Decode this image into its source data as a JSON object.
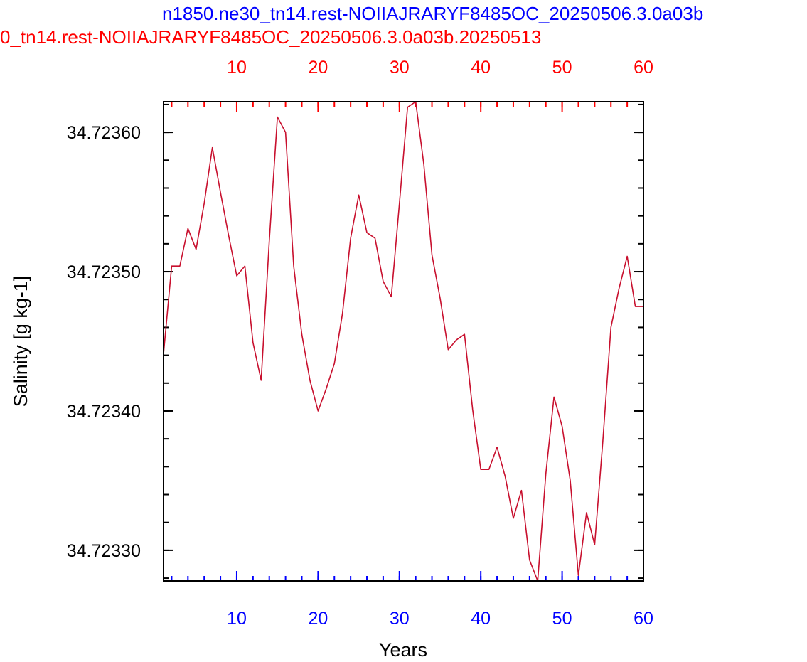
{
  "titles": {
    "blue": "n1850.ne30_tn14.rest-NOIIAJRARYF8485OC_20250506.3.0a03b",
    "red": "0_tn14.rest-NOIIAJRARYF8485OC_20250506.3.0a03b.20250513"
  },
  "colors": {
    "blue": "#0000ff",
    "red": "#ff0000",
    "line": "#c8102e",
    "axis": "#000000"
  },
  "chart_data": {
    "type": "line",
    "xlabel": "Years",
    "ylabel": "Salinity [g kg-1]",
    "xlim": [
      1,
      60
    ],
    "ylim": [
      34.723278,
      34.723622
    ],
    "xticks": [
      10,
      20,
      30,
      40,
      50,
      60
    ],
    "yticks": [
      34.7233,
      34.7234,
      34.7235,
      34.7236
    ],
    "ytick_labels": [
      "34.72330",
      "34.72340",
      "34.72350",
      "34.72360"
    ],
    "top_axis_ticks": [
      10,
      20,
      30,
      40,
      50,
      60
    ],
    "x": [
      1,
      2,
      3,
      4,
      5,
      6,
      7,
      8,
      9,
      10,
      11,
      12,
      13,
      14,
      15,
      16,
      17,
      18,
      19,
      20,
      21,
      22,
      23,
      24,
      25,
      26,
      27,
      28,
      29,
      30,
      31,
      32,
      33,
      34,
      35,
      36,
      37,
      38,
      39,
      40,
      41,
      42,
      43,
      44,
      45,
      46,
      47,
      48,
      49,
      50,
      51,
      52,
      53,
      54,
      55,
      56,
      57,
      58,
      59,
      60
    ],
    "series": [
      {
        "values": [
          34.723441,
          34.723504,
          34.723504,
          34.723531,
          34.723516,
          34.723549,
          34.723589,
          34.723557,
          34.723526,
          34.723497,
          34.723504,
          34.723449,
          34.723422,
          34.723522,
          34.723611,
          34.7236,
          34.723504,
          34.723455,
          34.723422,
          34.7234,
          34.723416,
          34.723434,
          34.72347,
          34.723524,
          34.723555,
          34.723528,
          34.723524,
          34.723493,
          34.723482,
          34.723549,
          34.723618,
          34.723622,
          34.723577,
          34.723512,
          34.723481,
          34.723444,
          34.723451,
          34.723455,
          34.723401,
          34.723358,
          34.723358,
          34.723374,
          34.723353,
          34.723323,
          34.723343,
          34.723293,
          34.723278,
          34.723355,
          34.72341,
          34.723389,
          34.72335,
          34.723282,
          34.723327,
          34.723304,
          34.723378,
          34.72346,
          34.723488,
          34.723511,
          34.723475,
          34.723475
        ]
      }
    ]
  }
}
